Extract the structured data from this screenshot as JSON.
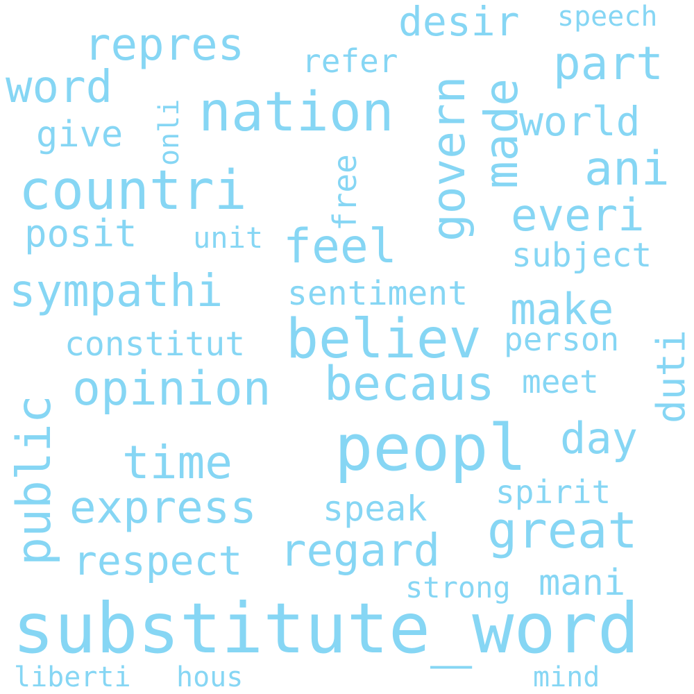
{
  "words": {
    "substitute_word": "substitute_word",
    "peopl": "peopl",
    "countri": "countri",
    "nation": "nation",
    "believ": "believ",
    "opinion": "opinion",
    "becaus": "becaus",
    "feel": "feel",
    "sympathi": "sympathi",
    "express": "express",
    "regard": "regard",
    "great": "great",
    "public": "public",
    "time": "time",
    "repres": "repres",
    "word": "word",
    "govern": "govern",
    "made": "made",
    "ani": "ani",
    "everi": "everi",
    "part": "part",
    "make": "make",
    "desir": "desir",
    "world": "world",
    "respect": "respect",
    "duti": "duti",
    "day": "day",
    "posit": "posit",
    "give": "give",
    "mani": "mani",
    "speak": "speak",
    "constitut": "constitut",
    "sentiment": "sentiment",
    "subject": "subject",
    "person": "person",
    "spirit": "spirit",
    "meet": "meet",
    "refer": "refer",
    "speech": "speech",
    "free": "free",
    "onli": "onli",
    "unit": "unit",
    "strong": "strong",
    "liberti": "liberti",
    "hous": "hous",
    "mind": "mind"
  },
  "color": "#86d6f4"
}
